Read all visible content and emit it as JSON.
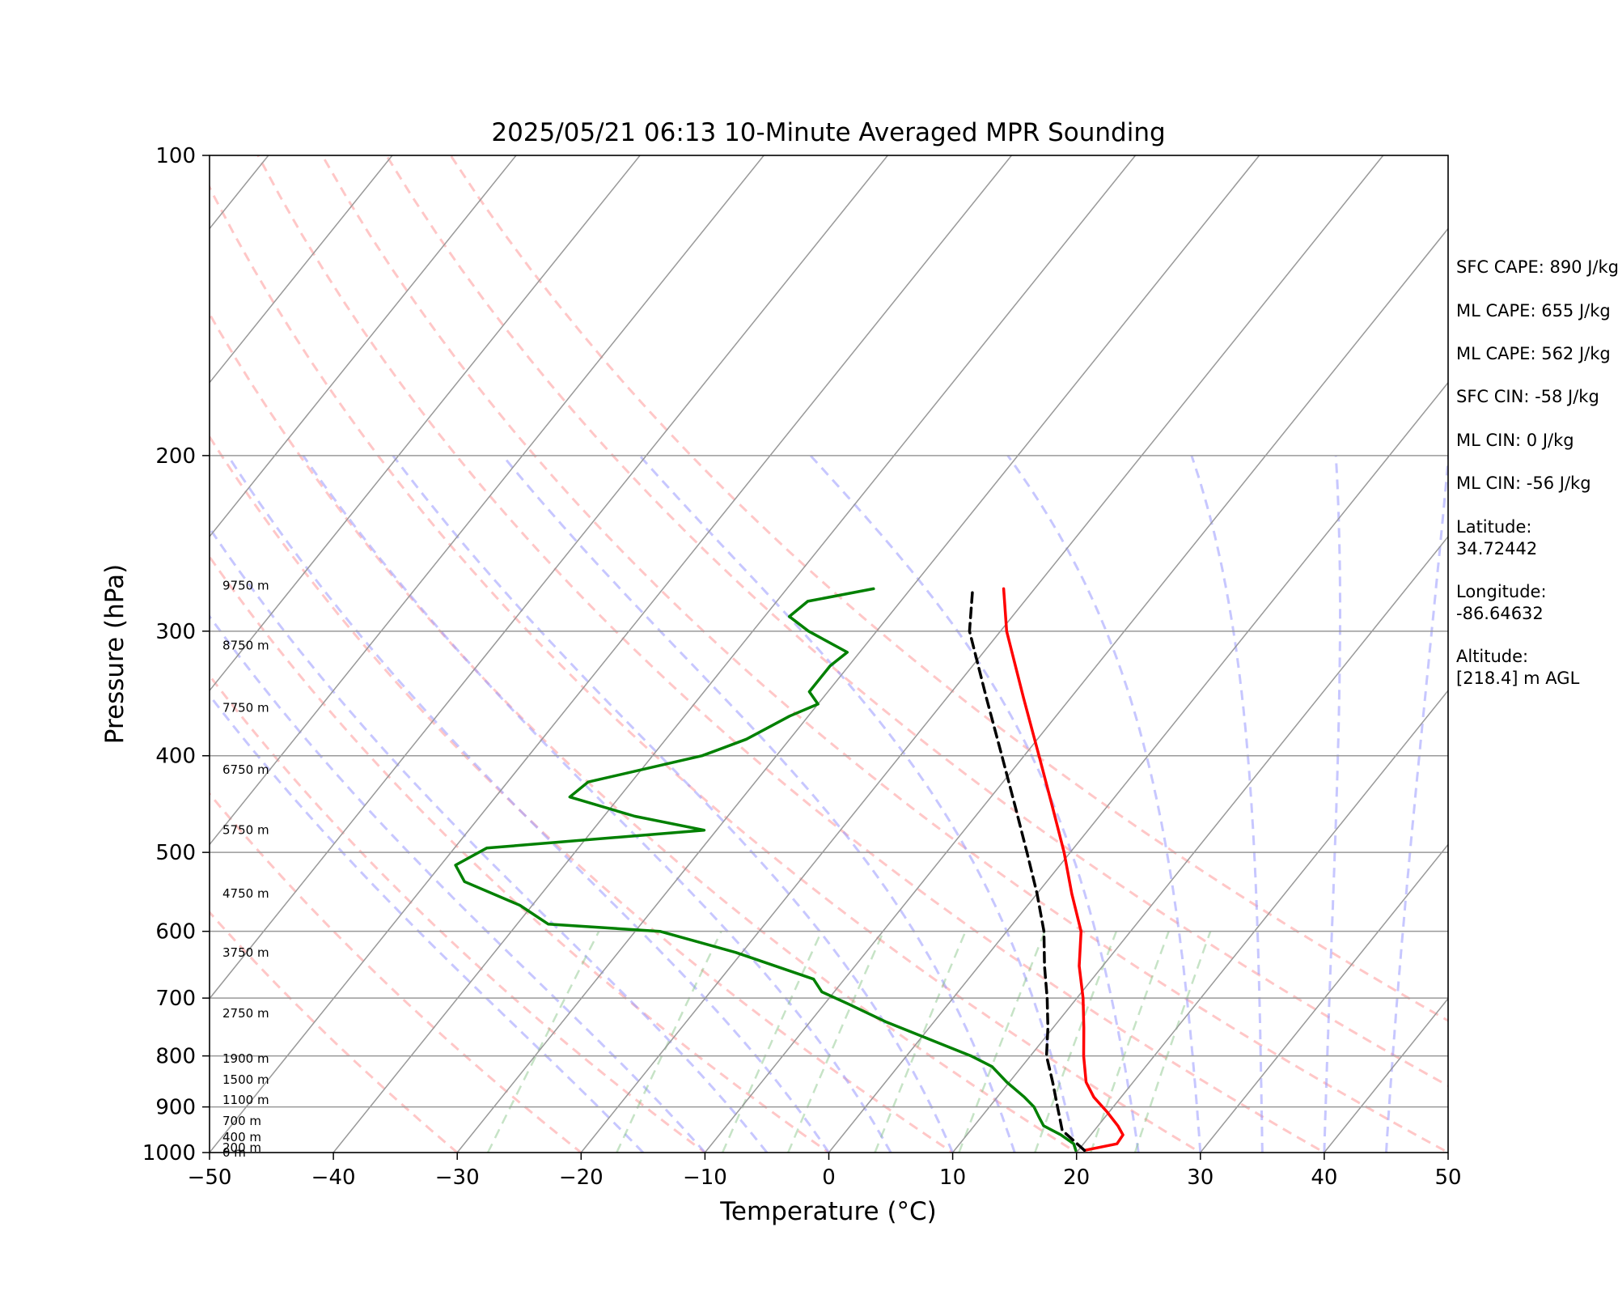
{
  "chart_data": {
    "type": "skew-t",
    "title": "2025/05/21 06:13 10-Minute Averaged MPR Sounding",
    "xlabel": "Temperature (°C)",
    "ylabel": "Pressure (hPa)",
    "xlim": [
      -50,
      50
    ],
    "ylim": [
      1000,
      100
    ],
    "y_scale": "log",
    "x_ticks": [
      "−50",
      "−40",
      "−30",
      "−20",
      "−10",
      "0",
      "10",
      "20",
      "30",
      "40",
      "50"
    ],
    "y_ticks": [
      "100",
      "200",
      "300",
      "400",
      "500",
      "600",
      "700",
      "800",
      "900",
      "1000"
    ],
    "colors": {
      "temperature": "#ff0000",
      "dewpoint": "#008000",
      "parcel": "#000000",
      "isotherms": "#999999",
      "dry_adiabats": "#ff9999",
      "moist_adiabats": "#9999ff",
      "mixing_ratio": "#80c080"
    },
    "series": [
      {
        "name": "",
        "key": "temperature",
        "values": [
          {
            "p": 995,
            "t": 20.5
          },
          {
            "p": 980,
            "t": 22.7
          },
          {
            "p": 960,
            "t": 22.6
          },
          {
            "p": 940,
            "t": 21.6
          },
          {
            "p": 910,
            "t": 19.8
          },
          {
            "p": 880,
            "t": 17.8
          },
          {
            "p": 850,
            "t": 16.2
          },
          {
            "p": 800,
            "t": 14.3
          },
          {
            "p": 750,
            "t": 12.5
          },
          {
            "p": 700,
            "t": 10.5
          },
          {
            "p": 650,
            "t": 8.1
          },
          {
            "p": 600,
            "t": 6.0
          },
          {
            "p": 550,
            "t": 2.8
          },
          {
            "p": 500,
            "t": -0.5
          },
          {
            "p": 450,
            "t": -4.4
          },
          {
            "p": 400,
            "t": -8.8
          },
          {
            "p": 350,
            "t": -13.8
          },
          {
            "p": 300,
            "t": -19.5
          },
          {
            "p": 272,
            "t": -22.5
          }
        ]
      },
      {
        "name": "",
        "key": "dewpoint",
        "values": [
          {
            "p": 995,
            "t": 19.8
          },
          {
            "p": 980,
            "t": 19.2
          },
          {
            "p": 960,
            "t": 17.6
          },
          {
            "p": 940,
            "t": 15.6
          },
          {
            "p": 920,
            "t": 14.6
          },
          {
            "p": 900,
            "t": 13.6
          },
          {
            "p": 880,
            "t": 12.2
          },
          {
            "p": 850,
            "t": 9.8
          },
          {
            "p": 820,
            "t": 7.6
          },
          {
            "p": 800,
            "t": 5.2
          },
          {
            "p": 770,
            "t": 0.8
          },
          {
            "p": 740,
            "t": -3.8
          },
          {
            "p": 710,
            "t": -8.0
          },
          {
            "p": 690,
            "t": -11.0
          },
          {
            "p": 670,
            "t": -12.5
          },
          {
            "p": 630,
            "t": -20.5
          },
          {
            "p": 600,
            "t": -28.0
          },
          {
            "p": 590,
            "t": -37.5
          },
          {
            "p": 565,
            "t": -41.0
          },
          {
            "p": 535,
            "t": -47.0
          },
          {
            "p": 515,
            "t": -48.8
          },
          {
            "p": 495,
            "t": -47.4
          },
          {
            "p": 475,
            "t": -31.0
          },
          {
            "p": 460,
            "t": -37.5
          },
          {
            "p": 440,
            "t": -44.0
          },
          {
            "p": 425,
            "t": -43.5
          },
          {
            "p": 400,
            "t": -36.0
          },
          {
            "p": 385,
            "t": -33.5
          },
          {
            "p": 365,
            "t": -31.5
          },
          {
            "p": 355,
            "t": -30.0
          },
          {
            "p": 345,
            "t": -31.5
          },
          {
            "p": 325,
            "t": -31.5
          },
          {
            "p": 315,
            "t": -31.0
          },
          {
            "p": 300,
            "t": -35.5
          },
          {
            "p": 290,
            "t": -38.0
          },
          {
            "p": 280,
            "t": -37.5
          },
          {
            "p": 272,
            "t": -33.0
          }
        ]
      },
      {
        "name": "",
        "key": "parcel",
        "values": [
          {
            "p": 995,
            "t": 20.5
          },
          {
            "p": 950,
            "t": 17.4
          },
          {
            "p": 900,
            "t": 15.5
          },
          {
            "p": 850,
            "t": 13.5
          },
          {
            "p": 800,
            "t": 11.3
          },
          {
            "p": 750,
            "t": 9.6
          },
          {
            "p": 700,
            "t": 7.6
          },
          {
            "p": 650,
            "t": 5.3
          },
          {
            "p": 600,
            "t": 3.0
          },
          {
            "p": 550,
            "t": 0.0
          },
          {
            "p": 500,
            "t": -3.5
          },
          {
            "p": 450,
            "t": -7.4
          },
          {
            "p": 400,
            "t": -11.8
          },
          {
            "p": 350,
            "t": -16.8
          },
          {
            "p": 300,
            "t": -22.5
          },
          {
            "p": 272,
            "t": -25.0
          }
        ]
      }
    ],
    "height_labels": [
      {
        "p": 1000,
        "text": "0 m"
      },
      {
        "p": 989,
        "text": "200 m"
      },
      {
        "p": 965,
        "text": "400 m"
      },
      {
        "p": 930,
        "text": "700 m"
      },
      {
        "p": 886,
        "text": "1100 m"
      },
      {
        "p": 845,
        "text": "1500 m"
      },
      {
        "p": 805,
        "text": "1900 m"
      },
      {
        "p": 725,
        "text": "2750 m"
      },
      {
        "p": 630,
        "text": "3750 m"
      },
      {
        "p": 550,
        "text": "4750 m"
      },
      {
        "p": 475,
        "text": "5750 m"
      },
      {
        "p": 413,
        "text": "6750 m"
      },
      {
        "p": 358,
        "text": "7750 m"
      },
      {
        "p": 310,
        "text": "8750 m"
      },
      {
        "p": 270,
        "text": "9750 m"
      }
    ]
  },
  "info": {
    "sfc_cape": "SFC CAPE: 890 J/kg",
    "ml_cape_1": "ML CAPE: 655 J/kg",
    "ml_cape_2": "ML CAPE: 562 J/kg",
    "sfc_cin": "SFC CIN: -58 J/kg",
    "ml_cin_1": "ML CIN: 0 J/kg",
    "ml_cin_2": "ML CIN: -56 J/kg",
    "latitude_label": "Latitude:",
    "latitude_value": "34.72442",
    "longitude_label": "Longitude:",
    "longitude_value": "-86.64632",
    "altitude_label": "Altitude:",
    "altitude_value": "[218.4] m AGL"
  }
}
